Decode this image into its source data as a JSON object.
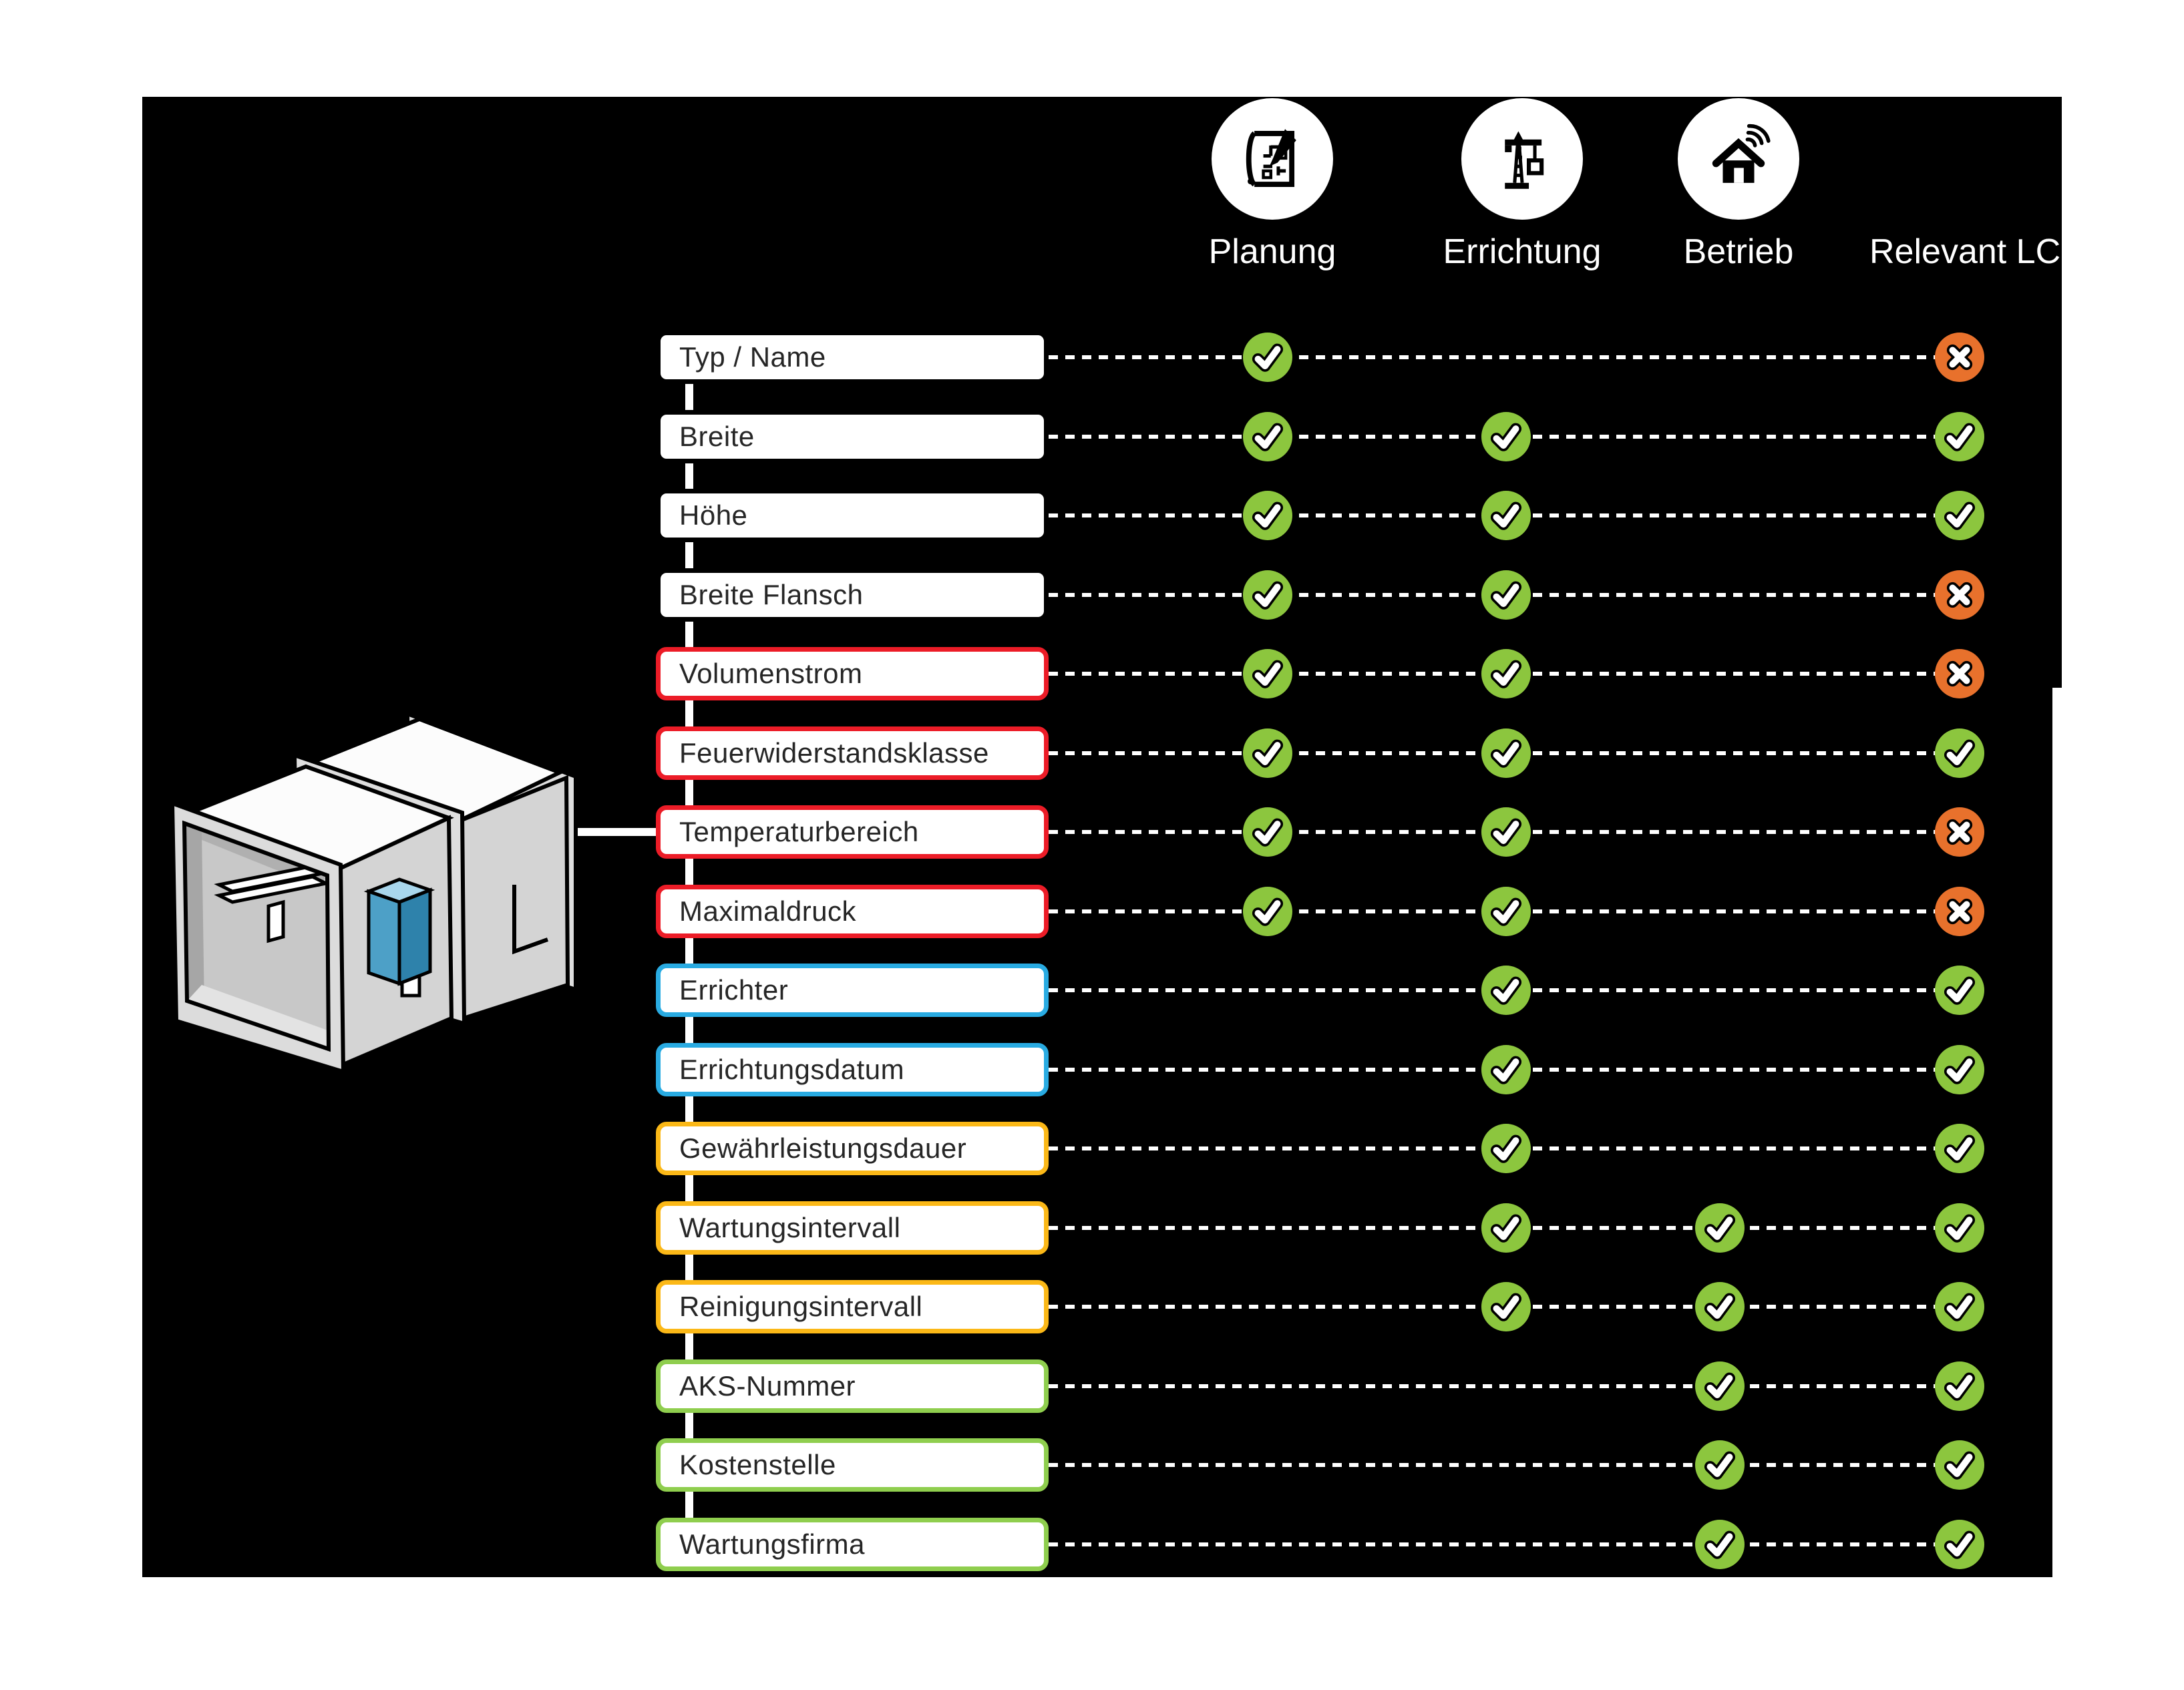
{
  "phases": [
    {
      "label": "Planung",
      "icon": "blueprint-icon"
    },
    {
      "label": "Errichtung",
      "icon": "crane-icon"
    },
    {
      "label": "Betrieb",
      "icon": "smart-home-icon"
    },
    {
      "label": "Relevant LC",
      "icon": null
    }
  ],
  "attributes": [
    {
      "label": "Typ / Name",
      "group": "black",
      "marks": {
        "planung": "check",
        "errichtung": null,
        "betrieb": null,
        "relevant": "x"
      }
    },
    {
      "label": "Breite",
      "group": "black",
      "marks": {
        "planung": "check",
        "errichtung": "check",
        "betrieb": null,
        "relevant": "check"
      }
    },
    {
      "label": "Höhe",
      "group": "black",
      "marks": {
        "planung": "check",
        "errichtung": "check",
        "betrieb": null,
        "relevant": "check"
      }
    },
    {
      "label": "Breite Flansch",
      "group": "black",
      "marks": {
        "planung": "check",
        "errichtung": "check",
        "betrieb": null,
        "relevant": "x"
      }
    },
    {
      "label": "Volumenstrom",
      "group": "red",
      "marks": {
        "planung": "check",
        "errichtung": "check",
        "betrieb": null,
        "relevant": "x"
      }
    },
    {
      "label": "Feuerwiderstandsklasse",
      "group": "red",
      "marks": {
        "planung": "check",
        "errichtung": "check",
        "betrieb": null,
        "relevant": "check"
      }
    },
    {
      "label": "Temperaturbereich",
      "group": "red",
      "marks": {
        "planung": "check",
        "errichtung": "check",
        "betrieb": null,
        "relevant": "x"
      }
    },
    {
      "label": "Maximaldruck",
      "group": "red",
      "marks": {
        "planung": "check",
        "errichtung": "check",
        "betrieb": null,
        "relevant": "x"
      }
    },
    {
      "label": "Errichter",
      "group": "blue",
      "marks": {
        "planung": null,
        "errichtung": "check",
        "betrieb": null,
        "relevant": "check"
      }
    },
    {
      "label": "Errichtungsdatum",
      "group": "blue",
      "marks": {
        "planung": null,
        "errichtung": "check",
        "betrieb": null,
        "relevant": "check"
      }
    },
    {
      "label": "Gewährleistungsdauer",
      "group": "amber",
      "marks": {
        "planung": null,
        "errichtung": "check",
        "betrieb": null,
        "relevant": "check"
      }
    },
    {
      "label": "Wartungsintervall",
      "group": "amber",
      "marks": {
        "planung": null,
        "errichtung": "check",
        "betrieb": "check",
        "relevant": "check"
      }
    },
    {
      "label": "Reinigungsintervall",
      "group": "amber",
      "marks": {
        "planung": null,
        "errichtung": "check",
        "betrieb": "check",
        "relevant": "check"
      }
    },
    {
      "label": "AKS-Nummer",
      "group": "green",
      "marks": {
        "planung": null,
        "errichtung": null,
        "betrieb": "check",
        "relevant": "check"
      }
    },
    {
      "label": "Kostenstelle",
      "group": "green",
      "marks": {
        "planung": null,
        "errichtung": null,
        "betrieb": "check",
        "relevant": "check"
      }
    },
    {
      "label": "Wartungsfirma",
      "group": "green",
      "marks": {
        "planung": null,
        "errichtung": null,
        "betrieb": "check",
        "relevant": "check"
      }
    }
  ],
  "colors": {
    "panel_background": "#000000",
    "check_green": "#8CC63E",
    "cross_orange": "#E8712C",
    "group_borders": {
      "black": "#000000",
      "red": "#EC1C27",
      "blue": "#29ABE2",
      "amber": "#FBB817",
      "green": "#8FCE4E"
    },
    "actuator_blue": "#4DA0C7",
    "duct_gray": "#DCDCDC"
  },
  "illustration": {
    "name": "fire-damper-isometric"
  }
}
